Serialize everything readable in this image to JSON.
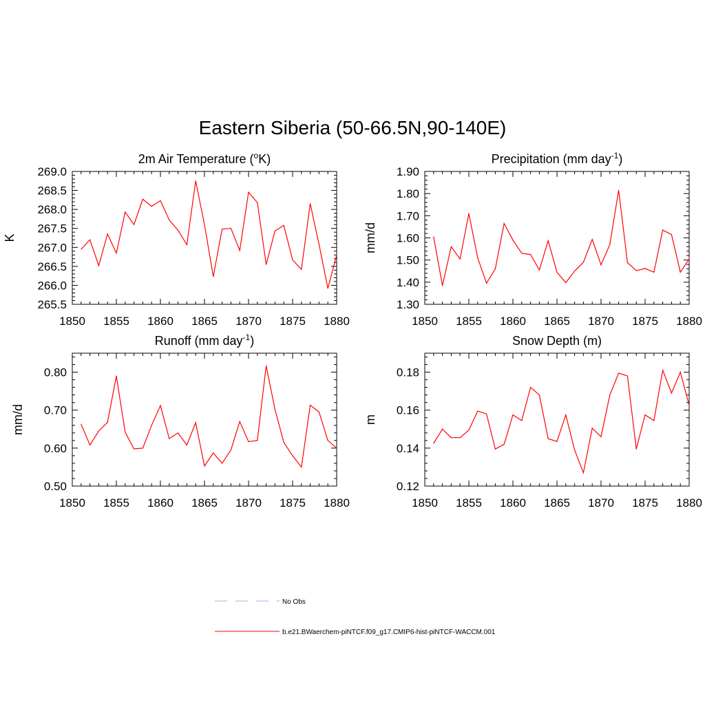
{
  "figure_title": "Eastern Siberia (50-66.5N,90-140E)",
  "chart_data": [
    {
      "type": "line",
      "title": "2m Air Temperature (°K)",
      "title_parts": [
        "2m Air Temperature (",
        "o",
        "K)"
      ],
      "xlabel": "",
      "ylabel": "K",
      "xlim": [
        1850,
        1880
      ],
      "ylim": [
        265.5,
        269.0
      ],
      "xticks": [
        1850,
        1855,
        1860,
        1865,
        1870,
        1875,
        1880
      ],
      "yticks": [
        265.5,
        266.0,
        266.5,
        267.0,
        267.5,
        268.0,
        268.5,
        269.0
      ],
      "ytick_labels": [
        "265.5",
        "266.0",
        "266.5",
        "267.0",
        "267.5",
        "268.0",
        "268.5",
        "269.0"
      ],
      "x": [
        1851,
        1852,
        1853,
        1854,
        1855,
        1856,
        1857,
        1858,
        1859,
        1860,
        1861,
        1862,
        1863,
        1864,
        1865,
        1866,
        1867,
        1868,
        1869,
        1870,
        1871,
        1872,
        1873,
        1874,
        1875,
        1876,
        1877,
        1878,
        1879,
        1880
      ],
      "series": [
        {
          "color": "#ff0000",
          "values": [
            266.95,
            267.2,
            266.52,
            267.35,
            266.85,
            267.93,
            267.6,
            268.27,
            268.08,
            268.23,
            267.72,
            267.45,
            267.07,
            268.75,
            267.6,
            266.23,
            267.48,
            267.5,
            266.92,
            268.45,
            268.18,
            266.55,
            267.43,
            267.58,
            266.67,
            266.42,
            268.15,
            267.08,
            265.92,
            266.8
          ]
        }
      ]
    },
    {
      "type": "line",
      "title": "Precipitation (mm day-1)",
      "title_parts": [
        "Precipitation (mm day",
        "-1",
        ")"
      ],
      "xlabel": "",
      "ylabel": "mm/d",
      "xlim": [
        1850,
        1880
      ],
      "ylim": [
        1.3,
        1.9
      ],
      "xticks": [
        1850,
        1855,
        1860,
        1865,
        1870,
        1875,
        1880
      ],
      "yticks": [
        1.3,
        1.4,
        1.5,
        1.6,
        1.7,
        1.8,
        1.9
      ],
      "ytick_labels": [
        "1.30",
        "1.40",
        "1.50",
        "1.60",
        "1.70",
        "1.80",
        "1.90"
      ],
      "x": [
        1851,
        1852,
        1853,
        1854,
        1855,
        1856,
        1857,
        1858,
        1859,
        1860,
        1861,
        1862,
        1863,
        1864,
        1865,
        1866,
        1867,
        1868,
        1869,
        1870,
        1871,
        1872,
        1873,
        1874,
        1875,
        1876,
        1877,
        1878,
        1879,
        1880
      ],
      "series": [
        {
          "color": "#ff0000",
          "values": [
            1.605,
            1.385,
            1.56,
            1.505,
            1.71,
            1.51,
            1.395,
            1.46,
            1.665,
            1.59,
            1.53,
            1.525,
            1.455,
            1.587,
            1.445,
            1.398,
            1.45,
            1.49,
            1.593,
            1.478,
            1.57,
            1.815,
            1.488,
            1.452,
            1.462,
            1.445,
            1.635,
            1.615,
            1.445,
            1.505
          ]
        }
      ]
    },
    {
      "type": "line",
      "title": "Runoff (mm day-1)",
      "title_parts": [
        "Runoff (mm day",
        "-1",
        ")"
      ],
      "xlabel": "",
      "ylabel": "mm/d",
      "xlim": [
        1850,
        1880
      ],
      "ylim": [
        0.5,
        0.85
      ],
      "xticks": [
        1850,
        1855,
        1860,
        1865,
        1870,
        1875,
        1880
      ],
      "yticks": [
        0.5,
        0.6,
        0.7,
        0.8
      ],
      "ytick_labels": [
        "0.50",
        "0.60",
        "0.70",
        "0.80"
      ],
      "x": [
        1851,
        1852,
        1853,
        1854,
        1855,
        1856,
        1857,
        1858,
        1859,
        1860,
        1861,
        1862,
        1863,
        1864,
        1865,
        1866,
        1867,
        1868,
        1869,
        1870,
        1871,
        1872,
        1873,
        1874,
        1875,
        1876,
        1877,
        1878,
        1879,
        1880
      ],
      "series": [
        {
          "color": "#ff0000",
          "values": [
            0.663,
            0.608,
            0.645,
            0.668,
            0.79,
            0.642,
            0.598,
            0.6,
            0.66,
            0.712,
            0.625,
            0.64,
            0.608,
            0.667,
            0.553,
            0.587,
            0.56,
            0.595,
            0.67,
            0.617,
            0.62,
            0.817,
            0.702,
            0.615,
            0.58,
            0.55,
            0.713,
            0.695,
            0.62,
            0.6
          ]
        }
      ]
    },
    {
      "type": "line",
      "title": "Snow Depth (m)",
      "title_parts": [
        "Snow Depth (m)",
        "",
        ""
      ],
      "xlabel": "",
      "ylabel": "m",
      "xlim": [
        1850,
        1880
      ],
      "ylim": [
        0.12,
        0.19
      ],
      "xticks": [
        1850,
        1855,
        1860,
        1865,
        1870,
        1875,
        1880
      ],
      "yticks": [
        0.12,
        0.14,
        0.16,
        0.18
      ],
      "ytick_labels": [
        "0.12",
        "0.14",
        "0.16",
        "0.18"
      ],
      "x": [
        1851,
        1852,
        1853,
        1854,
        1855,
        1856,
        1857,
        1858,
        1859,
        1860,
        1861,
        1862,
        1863,
        1864,
        1865,
        1866,
        1867,
        1868,
        1869,
        1870,
        1871,
        1872,
        1873,
        1874,
        1875,
        1876,
        1877,
        1878,
        1879,
        1880
      ],
      "series": [
        {
          "color": "#ff0000",
          "values": [
            0.1425,
            0.15,
            0.1455,
            0.1455,
            0.1495,
            0.1595,
            0.158,
            0.1395,
            0.142,
            0.1575,
            0.1545,
            0.172,
            0.168,
            0.145,
            0.1435,
            0.1575,
            0.139,
            0.127,
            0.1505,
            0.146,
            0.168,
            0.1795,
            0.178,
            0.1395,
            0.1575,
            0.1545,
            0.181,
            0.169,
            0.18,
            0.1625
          ]
        }
      ]
    }
  ],
  "legend": {
    "items": [
      {
        "label": "No Obs",
        "color": "#aaaaee",
        "style": "dashed"
      },
      {
        "label": "b.e21.BWaerchem-piNTCF.f09_g17.CMIP6-hist-piNTCF-WACCM.001",
        "color": "#ff0000",
        "style": "solid"
      }
    ]
  }
}
